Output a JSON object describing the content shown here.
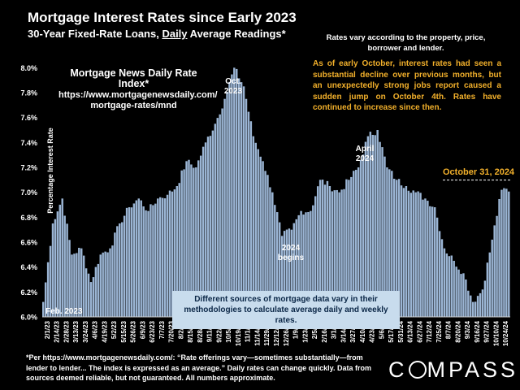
{
  "header": {
    "title": "Mortgage Interest Rates since Early 2023",
    "subtitle_pre": "30-Year Fixed-Rate Loans, ",
    "subtitle_underline": "Daily",
    "subtitle_post": " Average Readings*"
  },
  "note_vary": "Rates vary according to the property, price, borrower and lender.",
  "annotations": {
    "index_title": "Mortgage News Daily Rate Index*",
    "index_url_1": "https://www.mortgagenewsdaily.com/",
    "index_url_2": "mortgage-rates/mnd",
    "october_note": "As of early October, interest rates had seen a substantial decline over previous months, but an unexpectedly strong jobs report caused a sudden jump on October 4th. Rates have continued to increase since then.",
    "oct_2023_1": "Oct.",
    "oct_2023_2": "2023",
    "begins_2024_1": "2024",
    "begins_2024_2": "begins",
    "april_2024_1": "April",
    "april_2024_2": "2024",
    "oct31": "October 31, 2024",
    "feb_2023": "Feb. 2023",
    "sources": "Different sources of mortgage data vary in their methodologies to calculate average daily and weekly rates."
  },
  "footnote": "*Per https://www.mortgagenewsdaily.com/: “Rate offerings vary—sometimes substantially—from lender to lender... The index is expressed as an average.” Daily rates can change quickly. Data from sources deemed reliable, but not guaranteed. All numbers approximate.",
  "brand": {
    "logo_pre": "C",
    "logo_post": "MPASS"
  },
  "colors": {
    "bar": "#9bb5d4",
    "accent": "#f2b02b",
    "background": "#000000"
  },
  "chart_data": {
    "type": "bar",
    "title": "Mortgage Interest Rates since Early 2023",
    "ylabel": "Percentage Interest  Rate",
    "xlabel": "",
    "ylim": [
      6.0,
      8.1
    ],
    "yticks": [
      "6.0%",
      "6.2%",
      "6.4%",
      "6.6%",
      "6.8%",
      "7.0%",
      "7.2%",
      "7.4%",
      "7.6%",
      "7.8%",
      "8.0%"
    ],
    "ytick_values": [
      6.0,
      6.2,
      6.4,
      6.6,
      6.8,
      7.0,
      7.2,
      7.4,
      7.6,
      7.8,
      8.0
    ],
    "categories": [
      "2/1/23",
      "2/14/23",
      "2/28/23",
      "3/13/23",
      "3/24/23",
      "4/6/23",
      "4/19/23",
      "5/2/23",
      "5/15/23",
      "5/26/23",
      "6/9/23",
      "6/23/23",
      "7/7/23",
      "7/20/23",
      "8/2/23",
      "8/15/23",
      "8/28/23",
      "9/11/23",
      "9/22/23",
      "10/5/23",
      "10/19/23",
      "11/1/23",
      "11/14/23",
      "11/29/23",
      "12/12/23",
      "12/26/23",
      "1/9/24",
      "1/23/24",
      "2/5/24",
      "2/16/24",
      "3/1/24",
      "3/14/24",
      "3/27/24",
      "4/10/24",
      "4/23/24",
      "5/6/24",
      "5/17/24",
      "5/31/24",
      "6/13/24",
      "6/27/24",
      "7/12/24",
      "7/25/24",
      "8/7/24",
      "8/20/24",
      "9/3/24",
      "9/16/24",
      "9/27/24",
      "10/10/24",
      "10/24/24"
    ],
    "values": [
      6.12,
      6.75,
      6.95,
      6.5,
      6.55,
      6.28,
      6.5,
      6.55,
      6.75,
      6.88,
      6.95,
      6.85,
      6.95,
      6.98,
      7.05,
      7.25,
      7.2,
      7.4,
      7.55,
      7.75,
      8.0,
      7.85,
      7.45,
      7.25,
      7.0,
      6.65,
      6.7,
      6.85,
      6.85,
      7.1,
      7.05,
      7.0,
      7.1,
      7.2,
      7.45,
      7.5,
      7.2,
      7.1,
      7.05,
      7.0,
      6.95,
      6.88,
      6.55,
      6.45,
      6.35,
      6.12,
      6.22,
      6.62,
      7.02
    ]
  }
}
